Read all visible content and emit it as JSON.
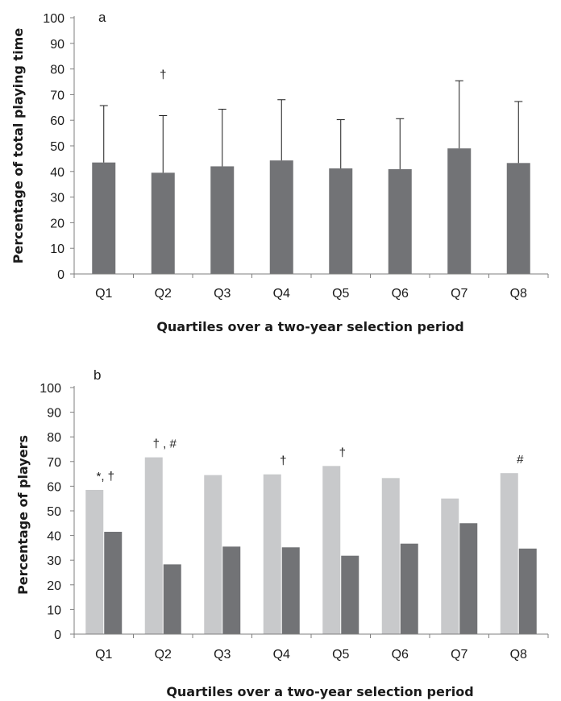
{
  "chart_data": [
    {
      "type": "bar",
      "panel_label": "a",
      "categories": [
        "Q1",
        "Q2",
        "Q3",
        "Q4",
        "Q5",
        "Q6",
        "Q7",
        "Q8"
      ],
      "series": [
        {
          "values": [
            43.5,
            39.5,
            42,
            44.3,
            41.2,
            40.9,
            49,
            43.3
          ],
          "error_upper": [
            65.7,
            61.8,
            64.3,
            68,
            60.2,
            60.6,
            75.4,
            67.3
          ],
          "color": "#727376"
        }
      ],
      "annotations": [
        {
          "category": "Q2",
          "text": "†"
        }
      ],
      "xlabel": "Quartiles over a two-year selection period",
      "ylabel": "Percentage of total playing time",
      "ylim": [
        0,
        100
      ],
      "yticks": [
        "0",
        "10",
        "20",
        "30",
        "40",
        "50",
        "60",
        "70",
        "80",
        "90",
        "100"
      ],
      "grid": false,
      "legend": "none"
    },
    {
      "type": "bar",
      "panel_label": "b",
      "categories": [
        "Q1",
        "Q2",
        "Q3",
        "Q4",
        "Q5",
        "Q6",
        "Q7",
        "Q8"
      ],
      "series": [
        {
          "values": [
            58.5,
            71.7,
            64.5,
            64.8,
            68.2,
            63.3,
            55,
            65.3
          ],
          "color": "#c8c9cb"
        },
        {
          "values": [
            41.5,
            28.3,
            35.5,
            35.2,
            31.8,
            36.7,
            45,
            34.7
          ],
          "color": "#727376"
        }
      ],
      "annotations": [
        {
          "category": "Q1",
          "text": "*, †"
        },
        {
          "category": "Q2",
          "text": "† , #"
        },
        {
          "category": "Q4",
          "text": "†"
        },
        {
          "category": "Q5",
          "text": "†"
        },
        {
          "category": "Q8",
          "text": "#"
        }
      ],
      "xlabel": "Quartiles over a two-year selection period",
      "ylabel": "Percentage of players",
      "ylim": [
        0,
        100
      ],
      "yticks": [
        "0",
        "10",
        "20",
        "30",
        "40",
        "50",
        "60",
        "70",
        "80",
        "90",
        "100"
      ],
      "grid": false,
      "legend": "none"
    }
  ]
}
